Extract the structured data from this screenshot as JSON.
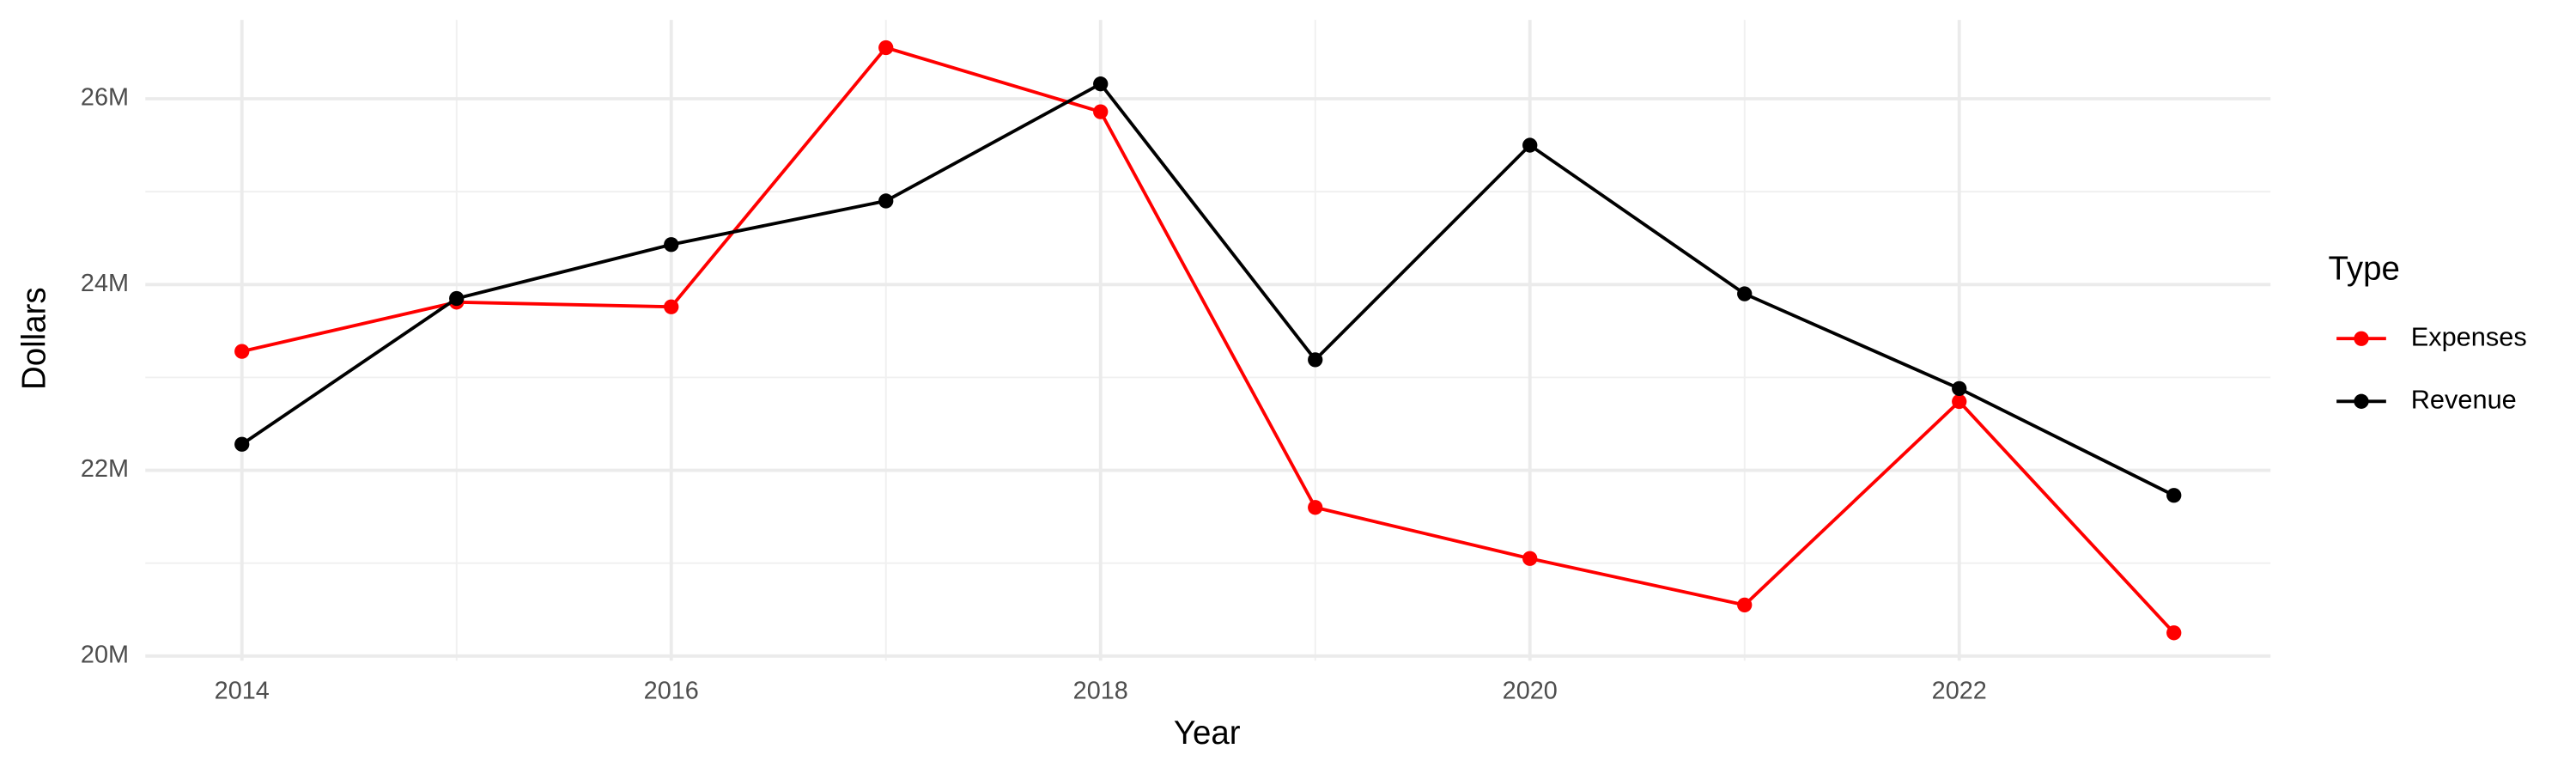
{
  "chart_data": {
    "type": "line",
    "x_label": "Year",
    "y_label": "Dollars",
    "legend_title": "Type",
    "legend": "right",
    "grid": true,
    "x": [
      2014,
      2015,
      2016,
      2017,
      2018,
      2019,
      2020,
      2021,
      2022,
      2023
    ],
    "series": [
      {
        "name": "Expenses",
        "color": "#ff0000",
        "values": [
          23280000,
          23810000,
          23760000,
          26550000,
          25860000,
          21600000,
          21050000,
          20550000,
          22740000,
          20250000
        ]
      },
      {
        "name": "Revenue",
        "color": "#000000",
        "values": [
          22280000,
          23850000,
          24430000,
          24900000,
          26160000,
          23190000,
          25500000,
          23900000,
          22880000,
          21730000
        ]
      }
    ],
    "xlim": [
      2013.55,
      2023.45
    ],
    "xticks": [
      2014,
      2016,
      2018,
      2020,
      2022
    ],
    "ylim": [
      19950000,
      26850000
    ],
    "yticks": [
      {
        "value": 20000000,
        "label": "20M"
      },
      {
        "value": 22000000,
        "label": "22M"
      },
      {
        "value": 24000000,
        "label": "24M"
      },
      {
        "value": 26000000,
        "label": "26M"
      }
    ]
  }
}
